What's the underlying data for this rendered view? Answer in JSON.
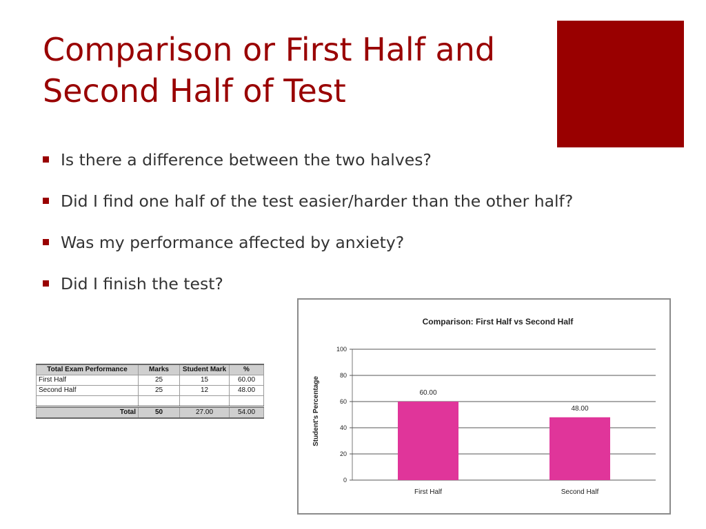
{
  "slide": {
    "title_line1": "Comparison or First Half and",
    "title_line2": "Second Half of Test",
    "accent_color": "#990000",
    "bullets": [
      "Is there a difference between the two halves?",
      "Did I find one half of the test easier/harder than the other half?",
      "Was my performance affected by anxiety?",
      "Did I finish the test?"
    ]
  },
  "table": {
    "headers": [
      "Total Exam Performance",
      "Marks",
      "Student Mark",
      "%"
    ],
    "rows": [
      [
        "First Half",
        "25",
        "15",
        "60.00"
      ],
      [
        "Second Half",
        "25",
        "12",
        "48.00"
      ]
    ],
    "total": [
      "Total",
      "50",
      "27.00",
      "54.00"
    ]
  },
  "chart_data": {
    "type": "bar",
    "title": "Comparison: First Half vs Second Half",
    "ylabel": "Student's Percentage",
    "xlabel": "",
    "categories": [
      "First Half",
      "Second Half"
    ],
    "values": [
      60.0,
      48.0
    ],
    "data_labels": [
      "60.00",
      "48.00"
    ],
    "ylim": [
      0,
      100
    ],
    "yticks": [
      0,
      20,
      40,
      60,
      80,
      100
    ],
    "grid": true,
    "bar_color": "#e0359a",
    "legend": "none"
  }
}
